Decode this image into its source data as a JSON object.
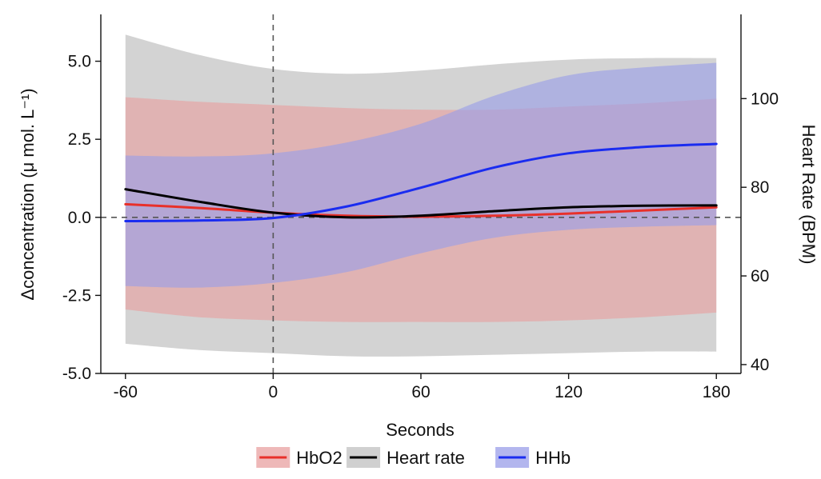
{
  "chart_data": {
    "type": "line",
    "xlabel": "Seconds",
    "ylabel_left": "Δconcentration (μ mol. L⁻¹)",
    "ylabel_right": "Heart Rate (BPM)",
    "xlim": [
      -70,
      190
    ],
    "ylim_left": [
      -5.0,
      6.5
    ],
    "ylim_right": [
      38,
      119
    ],
    "x_ticks": [
      -60,
      0,
      60,
      120,
      180
    ],
    "x_tick_labels": [
      "-60",
      "0",
      "60",
      "120",
      "180"
    ],
    "y_left_ticks": [
      -5.0,
      -2.5,
      0.0,
      2.5,
      5.0
    ],
    "y_left_tick_labels": [
      "-5.0",
      "-2.5",
      "0.0",
      "2.5",
      "5.0"
    ],
    "y_right_ticks": [
      40,
      60,
      80,
      100
    ],
    "y_right_tick_labels": [
      "40",
      "60",
      "80",
      "100"
    ],
    "reference_lines": {
      "x": 0,
      "y": 0
    },
    "grid": false,
    "legend_position": "bottom",
    "x": [
      -60,
      -30,
      0,
      30,
      60,
      90,
      120,
      150,
      180
    ],
    "series": [
      {
        "name": "HbO2",
        "color": "#e8302a",
        "band_color": "#e8a0a0",
        "axis": "left",
        "values": [
          0.42,
          0.3,
          0.15,
          0.05,
          0.02,
          0.05,
          0.12,
          0.22,
          0.32
        ],
        "lower": [
          -2.95,
          -3.2,
          -3.3,
          -3.35,
          -3.35,
          -3.35,
          -3.3,
          -3.2,
          -3.05
        ],
        "upper": [
          3.85,
          3.7,
          3.6,
          3.5,
          3.45,
          3.45,
          3.55,
          3.65,
          3.8
        ]
      },
      {
        "name": "Heart rate",
        "color": "#000000",
        "band_color": "#c8c8c8",
        "axis": "left",
        "values": [
          0.9,
          0.5,
          0.15,
          0.0,
          0.05,
          0.2,
          0.32,
          0.37,
          0.38
        ],
        "lower": [
          -4.05,
          -4.25,
          -4.35,
          -4.45,
          -4.45,
          -4.4,
          -4.35,
          -4.3,
          -4.3
        ],
        "upper": [
          5.85,
          5.2,
          4.75,
          4.6,
          4.7,
          4.9,
          5.05,
          5.1,
          5.1
        ]
      },
      {
        "name": "HHb",
        "color": "#1a2cf0",
        "band_color": "#9a9ee8",
        "axis": "left",
        "values": [
          -0.12,
          -0.1,
          -0.02,
          0.35,
          0.95,
          1.6,
          2.05,
          2.25,
          2.35
        ],
        "lower": [
          -2.2,
          -2.25,
          -2.1,
          -1.75,
          -1.15,
          -0.65,
          -0.4,
          -0.3,
          -0.25
        ],
        "upper": [
          1.98,
          1.95,
          2.05,
          2.4,
          3.0,
          3.9,
          4.55,
          4.8,
          4.95
        ]
      }
    ]
  }
}
